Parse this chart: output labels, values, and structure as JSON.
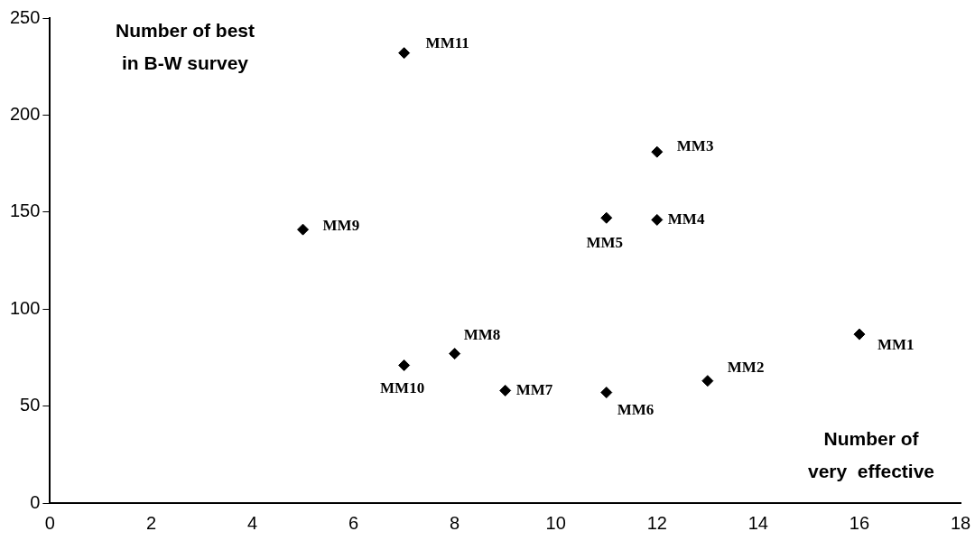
{
  "chart_data": {
    "type": "scatter",
    "xlabel": "Number of\nvery  effective",
    "ylabel": "Number of best\nin B-W survey",
    "x": [
      16,
      13,
      12,
      12,
      11,
      11,
      9,
      8,
      5,
      7,
      7
    ],
    "series": [
      {
        "color": "#000000",
        "values": [
          87,
          63,
          181,
          146,
          147,
          57,
          58,
          77,
          141,
          71,
          232
        ]
      }
    ],
    "annotations": [
      {
        "text": "MM1",
        "x": 16,
        "y": 87
      },
      {
        "text": "MM2",
        "x": 13,
        "y": 63
      },
      {
        "text": "MM3",
        "x": 12,
        "y": 181
      },
      {
        "text": "MM4",
        "x": 12,
        "y": 146
      },
      {
        "text": "MM5",
        "x": 11,
        "y": 147
      },
      {
        "text": "MM6",
        "x": 11,
        "y": 57
      },
      {
        "text": "MM7",
        "x": 9,
        "y": 58
      },
      {
        "text": "MM8",
        "x": 8,
        "y": 77
      },
      {
        "text": "MM9",
        "x": 5,
        "y": 141
      },
      {
        "text": "MM10",
        "x": 7,
        "y": 71
      },
      {
        "text": "MM11",
        "x": 7,
        "y": 232
      }
    ],
    "xlim": [
      0,
      18
    ],
    "xticks": [
      0,
      2,
      4,
      6,
      8,
      10,
      12,
      14,
      16,
      18
    ],
    "ylim": [
      0,
      250
    ],
    "yticks": [
      0,
      50,
      100,
      150,
      200,
      250
    ],
    "grid": false,
    "legend": false,
    "marker": "diamond"
  }
}
